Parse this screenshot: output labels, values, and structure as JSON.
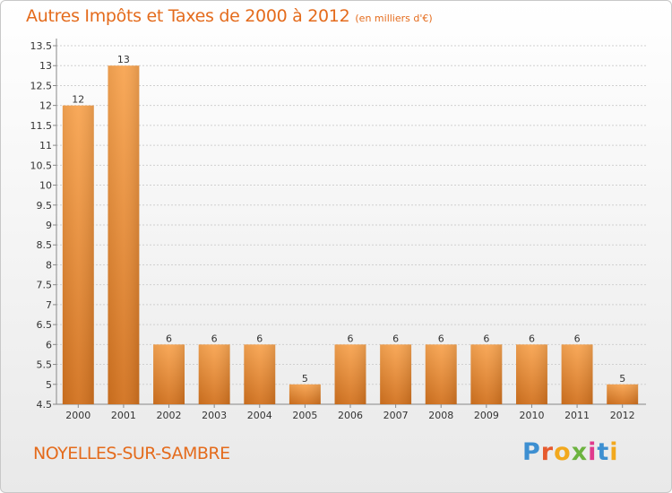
{
  "header": {
    "title": "Autres Impôts et Taxes de 2000 à 2012",
    "subtitle": "(en milliers d'€)"
  },
  "footer": {
    "commune": "NOYELLES-SUR-SAMBRE",
    "logo_text": "Proxiti"
  },
  "colors": {
    "bar_light": "#f8a552",
    "bar_dark": "#d2721f",
    "title": "#e46b1c"
  },
  "chart_data": {
    "type": "bar",
    "title": "Autres Impôts et Taxes de 2000 à 2012",
    "subtitle": "(en milliers d'€)",
    "categories": [
      "2000",
      "2001",
      "2002",
      "2003",
      "2004",
      "2005",
      "2006",
      "2007",
      "2008",
      "2009",
      "2010",
      "2011",
      "2012"
    ],
    "values": [
      12,
      13,
      6,
      6,
      6,
      5,
      6,
      6,
      6,
      6,
      6,
      6,
      5
    ],
    "ylim": [
      4.5,
      13.5
    ],
    "yticks": [
      "4.5",
      "5",
      "5.5",
      "6",
      "6.5",
      "7",
      "7.5",
      "8",
      "8.5",
      "9",
      "9.5",
      "10",
      "10.5",
      "11",
      "11.5",
      "12",
      "12.5",
      "13",
      "13.5"
    ],
    "grid": true,
    "xlabel": "",
    "ylabel": ""
  }
}
